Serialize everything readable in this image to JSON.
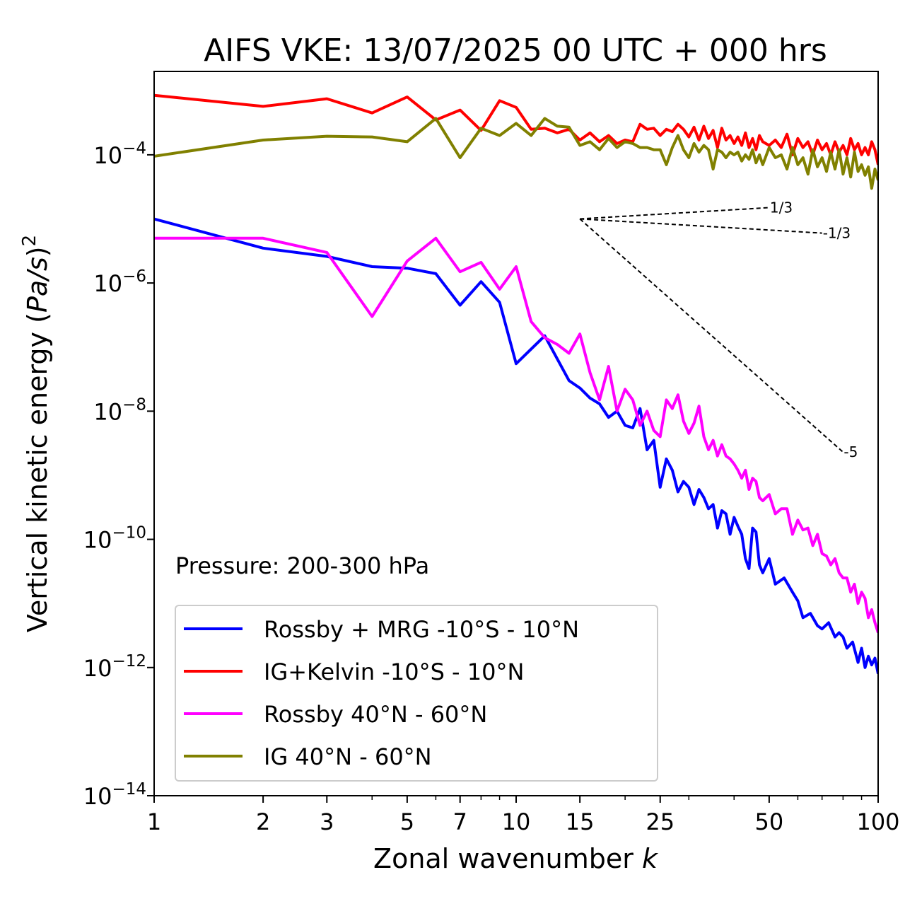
{
  "chart_data": {
    "type": "line",
    "title": "AIFS VKE: 13/07/2025 00 UTC + 000 hrs",
    "xlabel": "Zonal wavenumber",
    "xlabel_italic": "k",
    "ylabel": "Vertical kinetic energy (",
    "ylabel_italic": "Pa/s",
    "ylabel_end": ")",
    "ylabel_sup": "2",
    "x_scale": "log",
    "y_scale": "log",
    "xlim": [
      1,
      100
    ],
    "ylim": [
      1e-14,
      0.002
    ],
    "x_ticks": [
      {
        "value": 1,
        "label": "1"
      },
      {
        "value": 2,
        "label": "2"
      },
      {
        "value": 3,
        "label": "3"
      },
      {
        "value": 5,
        "label": "5"
      },
      {
        "value": 7,
        "label": "7"
      },
      {
        "value": 10,
        "label": "10"
      },
      {
        "value": 15,
        "label": "15"
      },
      {
        "value": 25,
        "label": "25"
      },
      {
        "value": 50,
        "label": "50"
      },
      {
        "value": 100,
        "label": "100"
      }
    ],
    "y_ticks": [
      {
        "value": 0.0001,
        "base": "10",
        "exp": "−4"
      },
      {
        "value": 1e-06,
        "base": "10",
        "exp": "−6"
      },
      {
        "value": 1e-08,
        "base": "10",
        "exp": "−8"
      },
      {
        "value": 1e-10,
        "base": "10",
        "exp": "−10"
      },
      {
        "value": 1e-12,
        "base": "10",
        "exp": "−12"
      },
      {
        "value": 1e-14,
        "base": "10",
        "exp": "−14"
      }
    ],
    "annotation": "Pressure: 200-300 hPa",
    "legend_position": "lower-left",
    "reference_lines": [
      {
        "label": "1/3",
        "x": [
          15,
          50
        ],
        "y": [
          1e-05,
          1.5e-05
        ]
      },
      {
        "label": "-1/3",
        "x": [
          15,
          70
        ],
        "y": [
          1e-05,
          6e-06
        ]
      },
      {
        "label": "-5",
        "x": [
          15,
          80
        ],
        "y": [
          1e-05,
          2.3e-09
        ]
      }
    ],
    "series": [
      {
        "name": "Rossby + MRG -10°S - 10°N",
        "color": "#0000ff",
        "x": [
          1,
          2,
          3,
          4,
          5,
          6,
          7,
          8,
          9,
          10,
          12,
          14,
          15,
          16,
          17,
          18,
          19,
          20,
          21,
          22,
          23,
          24,
          25,
          26,
          27,
          28,
          29,
          30,
          31,
          32,
          33,
          34,
          35,
          36,
          37,
          38,
          39,
          40,
          41,
          42,
          43,
          44,
          45,
          46,
          47,
          48,
          50,
          52,
          55,
          58,
          60,
          62,
          65,
          68,
          70,
          73,
          76,
          78,
          80,
          82,
          85,
          88,
          90,
          92,
          94,
          96,
          98,
          100
        ],
        "y": [
          1e-05,
          3.5e-06,
          2.6e-06,
          1.8e-06,
          1.7e-06,
          1.4e-06,
          4.5e-07,
          1.05e-06,
          5e-07,
          5.5e-08,
          1.5e-07,
          3e-08,
          2.3e-08,
          1.6e-08,
          1.3e-08,
          8e-09,
          1e-08,
          6e-09,
          5.5e-09,
          1.1e-08,
          2.5e-09,
          3.5e-09,
          6.5e-10,
          1.8e-09,
          1.2e-09,
          5.5e-10,
          8e-10,
          6.5e-10,
          3.5e-10,
          6e-10,
          4.5e-10,
          3e-10,
          3.5e-10,
          1.5e-10,
          2.8e-10,
          2.5e-10,
          1.2e-10,
          2.2e-10,
          1.6e-10,
          1.2e-10,
          5e-11,
          3.5e-11,
          1.5e-10,
          1.3e-10,
          4e-11,
          3e-11,
          5e-11,
          2e-11,
          2.5e-11,
          1.5e-11,
          1.1e-11,
          6e-12,
          7e-12,
          4.5e-12,
          4e-12,
          5e-12,
          3e-12,
          3.5e-12,
          3e-12,
          2e-12,
          2.5e-12,
          1.2e-12,
          2e-12,
          1e-12,
          1.5e-12,
          1.1e-12,
          1.4e-12,
          8e-13
        ]
      },
      {
        "name": "IG+Kelvin -10°S - 10°N",
        "color": "#ff0000",
        "x": [
          1,
          2,
          3,
          4,
          5,
          6,
          7,
          8,
          9,
          10,
          11,
          12,
          13,
          14,
          15,
          16,
          17,
          18,
          19,
          20,
          21,
          22,
          23,
          24,
          25,
          26,
          27,
          28,
          29,
          30,
          31,
          32,
          33,
          34,
          35,
          36,
          37,
          38,
          39,
          40,
          41,
          42,
          43,
          44,
          45,
          46,
          47,
          48,
          50,
          52,
          54,
          56,
          58,
          60,
          62,
          64,
          66,
          68,
          70,
          72,
          74,
          76,
          78,
          80,
          82,
          84,
          86,
          88,
          90,
          92,
          94,
          96,
          98,
          100
        ],
        "y": [
          0.00085,
          0.00057,
          0.00075,
          0.00045,
          0.0008,
          0.00035,
          0.0005,
          0.00024,
          0.0007,
          0.00055,
          0.00025,
          0.00026,
          0.00022,
          0.00025,
          0.00017,
          0.00022,
          0.00016,
          0.0002,
          0.00015,
          0.00017,
          0.00016,
          0.0003,
          0.00025,
          0.00026,
          0.0002,
          0.00025,
          0.00023,
          0.0003,
          0.00025,
          0.00019,
          0.00027,
          0.00017,
          0.00028,
          0.00018,
          0.00024,
          0.00013,
          0.00026,
          0.00017,
          0.0002,
          0.00015,
          0.00019,
          0.00014,
          0.00022,
          0.00013,
          0.00018,
          0.00012,
          0.0002,
          0.00016,
          0.00014,
          0.00017,
          0.00013,
          0.00021,
          0.0001,
          0.00018,
          0.00013,
          0.00016,
          0.0001,
          0.00017,
          0.00012,
          0.00015,
          0.0001,
          0.00016,
          0.00011,
          0.00014,
          0.0001,
          0.00018,
          0.00012,
          0.00015,
          0.0001,
          0.00013,
          0.0001,
          0.00016,
          0.00012,
          7e-05
        ]
      },
      {
        "name": "Rossby 40°N - 60°N",
        "color": "#ff00ff",
        "x": [
          1,
          2,
          3,
          4,
          5,
          6,
          7,
          8,
          9,
          10,
          11,
          12,
          13,
          14,
          15,
          16,
          17,
          18,
          19,
          20,
          21,
          22,
          23,
          24,
          25,
          26,
          27,
          28,
          29,
          30,
          31,
          32,
          33,
          34,
          35,
          36,
          37,
          38,
          39,
          40,
          41,
          42,
          43,
          44,
          45,
          46,
          47,
          48,
          50,
          52,
          54,
          56,
          58,
          60,
          62,
          64,
          66,
          68,
          70,
          72,
          74,
          76,
          78,
          80,
          82,
          84,
          86,
          88,
          90,
          92,
          94,
          96,
          98,
          100
        ],
        "y": [
          5e-06,
          5e-06,
          3e-06,
          3e-07,
          2.2e-06,
          5e-06,
          1.5e-06,
          2.1e-06,
          8e-07,
          1.8e-06,
          2.5e-07,
          1.4e-07,
          1.1e-07,
          8e-08,
          1.6e-07,
          4e-08,
          1.5e-08,
          5e-08,
          1e-08,
          2.2e-08,
          1.5e-08,
          6e-09,
          1e-08,
          5e-09,
          4e-09,
          1.5e-08,
          1.1e-08,
          1.8e-08,
          7e-09,
          4.5e-09,
          6.5e-09,
          1.2e-08,
          4e-09,
          2.5e-09,
          3.5e-09,
          2e-09,
          3e-09,
          2e-09,
          1.8e-09,
          1.5e-09,
          1.2e-09,
          9e-10,
          1.2e-09,
          6e-10,
          9e-10,
          8e-10,
          4.5e-10,
          4e-10,
          5e-10,
          2.5e-10,
          3e-10,
          3e-10,
          1.2e-10,
          2e-10,
          1.4e-10,
          1.5e-10,
          8e-11,
          1.2e-10,
          6e-11,
          5.5e-11,
          4e-11,
          5e-11,
          3e-11,
          2.5e-11,
          2.5e-11,
          1.5e-11,
          2e-11,
          1e-11,
          1.5e-11,
          1.2e-11,
          6e-12,
          8e-12,
          5e-12,
          3.5e-12
        ]
      },
      {
        "name": "IG 40°N - 60°N",
        "color": "#808000",
        "x": [
          1,
          2,
          3,
          4,
          5,
          6,
          7,
          8,
          9,
          10,
          11,
          12,
          13,
          14,
          15,
          16,
          17,
          18,
          19,
          20,
          21,
          22,
          23,
          24,
          25,
          26,
          27,
          28,
          29,
          30,
          31,
          32,
          33,
          34,
          35,
          36,
          37,
          38,
          39,
          40,
          41,
          42,
          43,
          44,
          45,
          46,
          47,
          48,
          50,
          52,
          54,
          56,
          58,
          60,
          62,
          64,
          66,
          68,
          70,
          72,
          74,
          76,
          78,
          80,
          82,
          84,
          86,
          88,
          90,
          92,
          94,
          96,
          98,
          100
        ],
        "y": [
          9.5e-05,
          0.00017,
          0.000195,
          0.00019,
          0.00016,
          0.00037,
          9e-05,
          0.00026,
          0.0002,
          0.00031,
          0.0002,
          0.00037,
          0.00028,
          0.00027,
          0.00014,
          0.00016,
          0.00012,
          0.00018,
          0.00013,
          0.00016,
          0.00015,
          0.00013,
          0.00013,
          0.00012,
          0.00012,
          7e-05,
          0.00013,
          0.0002,
          0.00012,
          9e-05,
          0.00015,
          0.00011,
          0.00014,
          0.00012,
          6e-05,
          0.00012,
          0.00011,
          9e-05,
          0.00011,
          0.0001,
          0.00011,
          8e-05,
          0.0001,
          8.5e-05,
          0.00012,
          7.5e-05,
          0.0001,
          7e-05,
          0.00013,
          9e-05,
          0.0001,
          6e-05,
          0.00013,
          7e-05,
          9e-05,
          5e-05,
          0.00012,
          6.5e-05,
          9e-05,
          5.5e-05,
          0.00011,
          6e-05,
          0.00012,
          5e-05,
          9e-05,
          4.5e-05,
          0.00011,
          5.5e-05,
          7e-05,
          4.8e-05,
          6.5e-05,
          3e-05,
          6e-05,
          4e-05
        ]
      }
    ]
  }
}
